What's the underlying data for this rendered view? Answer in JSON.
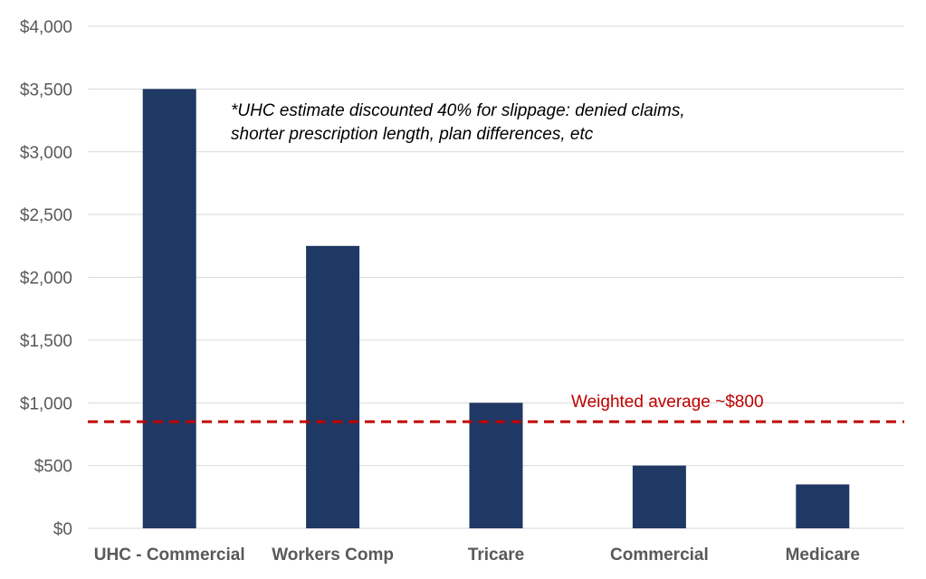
{
  "chart_data": {
    "type": "bar",
    "categories": [
      "UHC - Commercial",
      "Workers Comp",
      "Tricare",
      "Commercial",
      "Medicare"
    ],
    "values": [
      3500,
      2250,
      1000,
      500,
      350
    ],
    "ylim": [
      0,
      4000
    ],
    "yticks": [
      0,
      500,
      1000,
      1500,
      2000,
      2500,
      3000,
      3500,
      4000
    ],
    "ytick_labels": [
      "$0",
      "$500",
      "$1,000",
      "$1,500",
      "$2,000",
      "$2,500",
      "$3,000",
      "$3,500",
      "$4,000"
    ],
    "grid": true,
    "bar_color": "#203864",
    "reference_line": {
      "value": 850,
      "label": "Weighted average ~$800",
      "color": "#C00000",
      "style": "dashed"
    },
    "annotation": {
      "lines": [
        "*UHC estimate discounted 40% for slippage: denied claims,",
        "shorter prescription length, plan differences, etc"
      ]
    }
  }
}
